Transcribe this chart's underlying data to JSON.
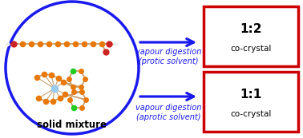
{
  "bg_color": "#ffffff",
  "circle_color": "#1a1aee",
  "arrow_color": "#1a1aee",
  "box_color": "#cc0000",
  "box_facecolor": "#ffffff",
  "label1_text1": "vapour digestion",
  "label1_text2": "(aprotic solvent)",
  "label2_text1": "vapour digestion",
  "label2_text2": "(protic solvent)",
  "box1_label1": "1:1",
  "box1_label2": "co-crystal",
  "box2_label1": "1:2",
  "box2_label2": "co-crystal",
  "solid_mixture_label": "solid mixture",
  "orange": "#e8780a",
  "green": "#22cc22",
  "red": "#cc2222",
  "light_blue": "#99ccee",
  "bond_color": "#c8a070",
  "white_atom": "#f0f0f0"
}
